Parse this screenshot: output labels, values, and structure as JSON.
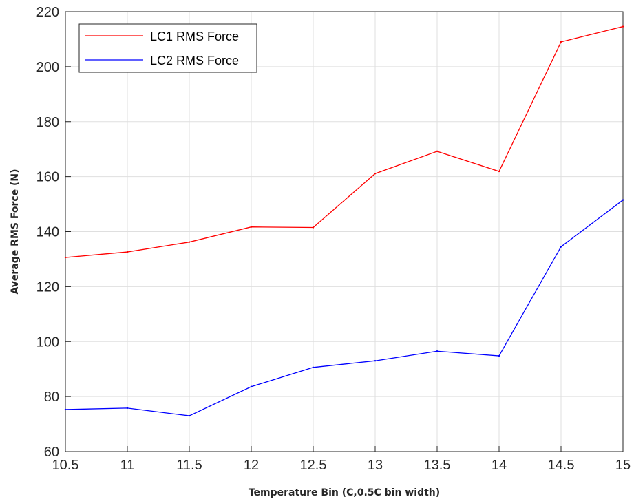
{
  "chart_data": {
    "type": "line",
    "title": "",
    "xlabel": "Temperature Bin (C,0.5C bin width)",
    "ylabel": "Average RMS Force (N)",
    "xlim": [
      10.5,
      15
    ],
    "ylim": [
      60,
      220
    ],
    "xticks": [
      10.5,
      11,
      11.5,
      12,
      12.5,
      13,
      13.5,
      14,
      14.5,
      15
    ],
    "xtick_labels": [
      "10.5",
      "11",
      "11.5",
      "12",
      "12.5",
      "13",
      "13.5",
      "14",
      "14.5",
      "15"
    ],
    "yticks": [
      60,
      80,
      100,
      120,
      140,
      160,
      180,
      200,
      220
    ],
    "ytick_labels": [
      "60",
      "80",
      "100",
      "120",
      "140",
      "160",
      "180",
      "200",
      "220"
    ],
    "grid": true,
    "legend_position": "top-left",
    "x": [
      10.5,
      11,
      11.5,
      12,
      12.5,
      13,
      13.5,
      14,
      14.5,
      15
    ],
    "series": [
      {
        "name": "LC1 RMS Force",
        "color": "#ff0000",
        "values": [
          130.6,
          132.6,
          136.2,
          141.7,
          141.5,
          161.1,
          169.2,
          161.9,
          209.0,
          214.6
        ]
      },
      {
        "name": "LC2 RMS Force",
        "color": "#0000ff",
        "values": [
          75.3,
          75.8,
          73.0,
          83.6,
          90.6,
          93.0,
          96.5,
          94.8,
          134.5,
          151.5
        ]
      }
    ]
  }
}
